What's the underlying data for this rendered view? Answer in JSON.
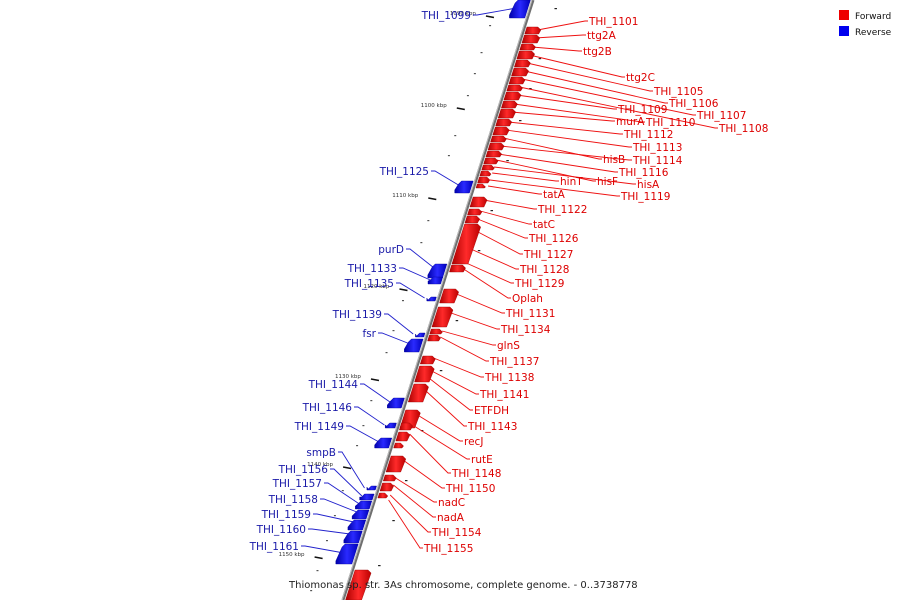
{
  "legend": [
    {
      "label": "Forward",
      "color": "#ee0000"
    },
    {
      "label": "Reverse",
      "color": "#0000ee"
    }
  ],
  "caption": "Thiomonas sp. str. 3As chromosome, complete genome. - 0..3738778",
  "ticks": [
    "1090 kbp",
    "1100 kbp",
    "1110 kbp",
    "1120 kbp",
    "1130 kbp",
    "1140 kbp",
    "1150 kbp"
  ],
  "forward_genes": [
    "THI_1101",
    "ttg2A",
    "ttg2B",
    "ttg2C",
    "THI_1105",
    "THI_1106",
    "THI_1107",
    "THI_1108",
    "THI_1109",
    "THI_1110",
    "murA",
    "THI_1112",
    "THI_1113",
    "hisB",
    "THI_1114",
    "THI_1116",
    "hisF",
    "hisA",
    "hinT",
    "THI_1119",
    "tatA",
    "THI_1122",
    "tatC",
    "THI_1126",
    "THI_1127",
    "THI_1128",
    "THI_1129",
    "Oplah",
    "THI_1131",
    "THI_1134",
    "glnS",
    "THI_1137",
    "THI_1138",
    "THI_1141",
    "ETFDH",
    "THI_1143",
    "recJ",
    "rutE",
    "THI_1148",
    "THI_1150",
    "nadC",
    "nadA",
    "THI_1154",
    "THI_1155"
  ],
  "reverse_genes": [
    "THI_1099",
    "THI_1125",
    "purD",
    "THI_1133",
    "THI_1135",
    "THI_1139",
    "fsr",
    "THI_1144",
    "THI_1146",
    "THI_1149",
    "smpB",
    "THI_1156",
    "THI_1157",
    "THI_1158",
    "THI_1159",
    "THI_1160",
    "THI_1161"
  ]
}
